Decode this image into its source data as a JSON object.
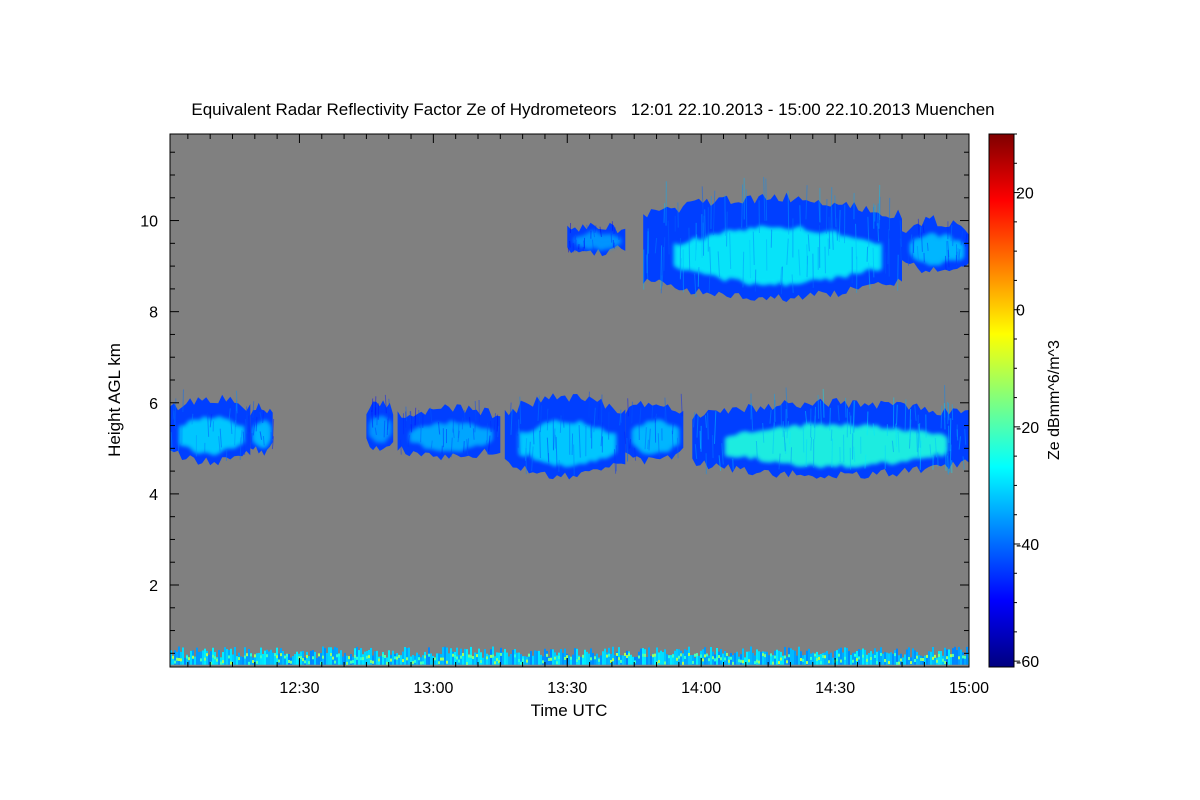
{
  "chart_data": {
    "type": "heatmap",
    "title": "Equivalent Radar Reflectivity Factor Ze of Hydrometeors   12:01 22.10.2013 - 15:00 22.10.2013 Muenchen",
    "xlabel": "Time UTC",
    "ylabel": "Height AGL km",
    "colorbar_label": "Ze dBmm^6/m^3",
    "x_range_min": [
      721,
      900
    ],
    "y_range_km": [
      0.2,
      11.9
    ],
    "colorbar_range": [
      -61,
      30
    ],
    "x_ticks": [
      {
        "min": 750,
        "label": "12:30"
      },
      {
        "min": 780,
        "label": "13:00"
      },
      {
        "min": 810,
        "label": "13:30"
      },
      {
        "min": 840,
        "label": "14:00"
      },
      {
        "min": 870,
        "label": "14:30"
      },
      {
        "min": 900,
        "label": "15:00"
      }
    ],
    "y_ticks": [
      {
        "km": 2,
        "label": "2"
      },
      {
        "km": 4,
        "label": "4"
      },
      {
        "km": 6,
        "label": "6"
      },
      {
        "km": 8,
        "label": "8"
      },
      {
        "km": 10,
        "label": "10"
      }
    ],
    "colorbar_ticks": [
      {
        "dbz": -60,
        "label": "-60"
      },
      {
        "dbz": -40,
        "label": "-40"
      },
      {
        "dbz": -20,
        "label": "-20"
      },
      {
        "dbz": 0,
        "label": "0"
      },
      {
        "dbz": 20,
        "label": "20"
      }
    ],
    "background_color": "#808080",
    "colormap": [
      "#00007f",
      "#0000ff",
      "#007fff",
      "#00ffff",
      "#7fff7f",
      "#ffff00",
      "#ff7f00",
      "#ff0000",
      "#7f0000"
    ],
    "echo_regions": [
      {
        "t_start": 721,
        "t_end": 739,
        "base_km": 4.7,
        "top_km": 6.1,
        "peak_dbz": -30
      },
      {
        "t_start": 739,
        "t_end": 744,
        "base_km": 4.9,
        "top_km": 5.9,
        "peak_dbz": -32
      },
      {
        "t_start": 765,
        "t_end": 771,
        "base_km": 5.0,
        "top_km": 6.0,
        "peak_dbz": -36
      },
      {
        "t_start": 772,
        "t_end": 795,
        "base_km": 4.8,
        "top_km": 5.9,
        "peak_dbz": -34
      },
      {
        "t_start": 796,
        "t_end": 823,
        "base_km": 4.4,
        "top_km": 6.1,
        "peak_dbz": -30
      },
      {
        "t_start": 823,
        "t_end": 836,
        "base_km": 4.7,
        "top_km": 6.0,
        "peak_dbz": -32
      },
      {
        "t_start": 838,
        "t_end": 900,
        "base_km": 4.4,
        "top_km": 6.0,
        "peak_dbz": -22
      },
      {
        "t_start": 810,
        "t_end": 823,
        "base_km": 9.3,
        "top_km": 9.9,
        "peak_dbz": -36
      },
      {
        "t_start": 827,
        "t_end": 885,
        "base_km": 8.3,
        "top_km": 10.5,
        "peak_dbz": -26
      },
      {
        "t_start": 885,
        "t_end": 900,
        "base_km": 8.9,
        "top_km": 10.0,
        "peak_dbz": -32
      }
    ],
    "near_surface_clutter": {
      "t_start": 721,
      "t_end": 900,
      "base_km": 0.25,
      "top_km": 0.65,
      "peak_dbz": -10
    }
  }
}
